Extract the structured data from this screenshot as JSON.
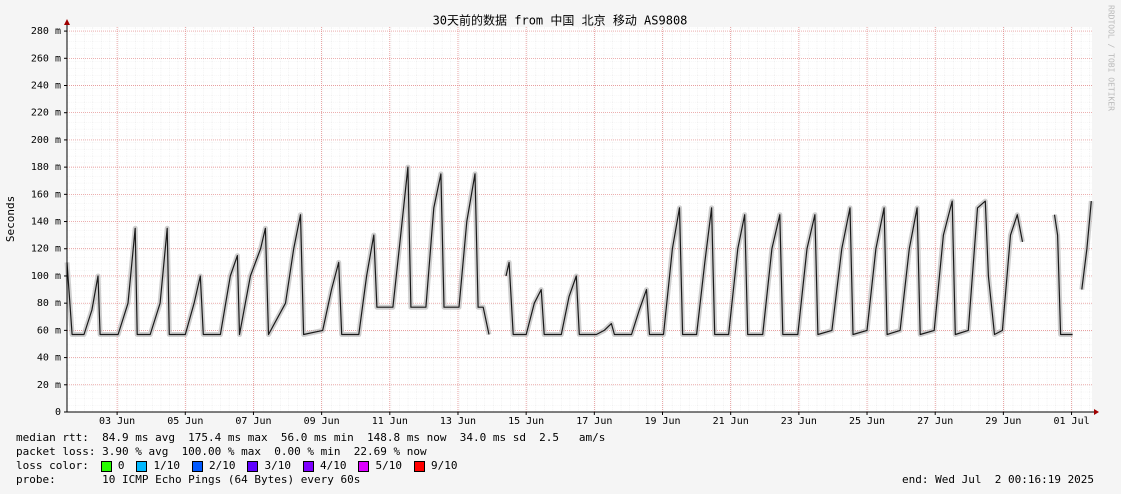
{
  "chart_data": {
    "type": "line",
    "title": "30天前的数据 from 中国 北京 移动 AS9808",
    "y_label": "Seconds",
    "watermark": "RRDTOOL / TOBI OETIKER",
    "x": [
      1.53,
      1.68,
      2.03,
      2.26,
      2.44,
      2.5,
      3.03,
      3.32,
      3.53,
      3.59,
      3.97,
      4.26,
      4.47,
      4.53,
      5.0,
      5.26,
      5.44,
      5.53,
      6.03,
      6.32,
      6.53,
      6.59,
      6.91,
      7.21,
      7.35,
      7.44,
      7.94,
      8.18,
      8.38,
      8.47,
      9.03,
      9.29,
      9.5,
      9.59,
      10.09,
      10.32,
      10.53,
      10.62,
      11.09,
      11.32,
      11.53,
      11.62,
      12.06,
      12.29,
      12.5,
      12.59,
      13.03,
      13.26,
      13.5,
      13.59,
      13.74,
      13.91,
      14.2,
      14.41,
      14.5,
      14.62,
      15.0,
      15.24,
      15.44,
      15.53,
      16.03,
      16.26,
      16.47,
      16.56,
      17.06,
      17.29,
      17.5,
      17.59,
      18.09,
      18.32,
      18.53,
      18.62,
      19.03,
      19.29,
      19.5,
      19.59,
      20.0,
      20.24,
      20.44,
      20.53,
      20.94,
      21.21,
      21.41,
      21.5,
      21.94,
      22.21,
      22.44,
      22.53,
      22.97,
      23.24,
      23.47,
      23.56,
      23.97,
      24.26,
      24.5,
      24.59,
      25.0,
      25.26,
      25.5,
      25.59,
      25.97,
      26.24,
      26.47,
      26.56,
      26.97,
      27.24,
      27.5,
      27.59,
      27.97,
      28.24,
      28.47,
      28.56,
      28.74,
      28.97,
      29.21,
      29.41,
      29.56,
      29.9,
      30.5,
      30.59,
      30.68,
      31.03,
      31.15,
      31.3,
      31.45,
      31.58
    ],
    "series": [
      {
        "color": "#1a1a1a",
        "values": [
          110,
          57,
          57,
          75,
          100,
          57,
          57,
          80,
          135,
          57,
          57,
          80,
          135,
          57,
          57,
          80,
          100,
          57,
          57,
          100,
          115,
          57,
          100,
          120,
          135,
          57,
          80,
          120,
          145,
          57,
          60,
          90,
          110,
          57,
          57,
          100,
          130,
          77,
          77,
          130,
          180,
          77,
          77,
          150,
          175,
          77,
          77,
          140,
          175,
          77,
          77,
          57,
          null,
          100,
          110,
          57,
          57,
          80,
          90,
          57,
          57,
          85,
          100,
          57,
          57,
          60,
          65,
          57,
          57,
          75,
          90,
          57,
          57,
          120,
          150,
          57,
          57,
          110,
          150,
          57,
          57,
          120,
          145,
          57,
          57,
          120,
          145,
          57,
          57,
          120,
          145,
          57,
          60,
          120,
          150,
          57,
          60,
          120,
          150,
          57,
          60,
          120,
          150,
          57,
          60,
          130,
          155,
          57,
          60,
          150,
          155,
          100,
          57,
          60,
          130,
          145,
          125,
          null,
          145,
          130,
          57,
          57,
          null,
          90,
          120,
          155
        ]
      }
    ],
    "xlim": [
      1.53,
      31.6
    ],
    "xticks": [
      {
        "value": 3,
        "label": "03 Jun"
      },
      {
        "value": 5,
        "label": "05 Jun"
      },
      {
        "value": 7,
        "label": "07 Jun"
      },
      {
        "value": 9,
        "label": "09 Jun"
      },
      {
        "value": 11,
        "label": "11 Jun"
      },
      {
        "value": 13,
        "label": "13 Jun"
      },
      {
        "value": 15,
        "label": "15 Jun"
      },
      {
        "value": 17,
        "label": "17 Jun"
      },
      {
        "value": 19,
        "label": "19 Jun"
      },
      {
        "value": 21,
        "label": "21 Jun"
      },
      {
        "value": 23,
        "label": "23 Jun"
      },
      {
        "value": 25,
        "label": "25 Jun"
      },
      {
        "value": 27,
        "label": "27 Jun"
      },
      {
        "value": 29,
        "label": "29 Jun"
      },
      {
        "value": 31,
        "label": "01 Jul"
      }
    ],
    "ylim": [
      0,
      283
    ],
    "yticks": [
      0,
      {
        "value": 20,
        "label": "20 m"
      },
      {
        "value": 40,
        "label": "40 m"
      },
      {
        "value": 60,
        "label": "60 m"
      },
      {
        "value": 80,
        "label": "80 m"
      },
      {
        "value": 100,
        "label": "100 m"
      },
      {
        "value": 120,
        "label": "120 m"
      },
      {
        "value": 140,
        "label": "140 m"
      },
      {
        "value": 160,
        "label": "160 m"
      },
      {
        "value": 180,
        "label": "180 m"
      },
      {
        "value": 200,
        "label": "200 m"
      },
      {
        "value": 220,
        "label": "220 m"
      },
      {
        "value": 240,
        "label": "240 m"
      },
      {
        "value": 260,
        "label": "260 m"
      },
      {
        "value": 280,
        "label": "280 m"
      }
    ],
    "grid": true
  },
  "legend": {
    "median_rtt": "median rtt:  84.9 ms avg  175.4 ms max  56.0 ms min  148.8 ms now  34.0 ms sd  2.5   am/s",
    "packet_loss": "packet loss: 3.90 % avg  100.00 % max  0.00 % min  22.69 % now",
    "loss_color_label": "loss color:",
    "loss_colors": [
      {
        "label": "0",
        "color": "#26ff00"
      },
      {
        "label": "1/10",
        "color": "#00b8ff"
      },
      {
        "label": "2/10",
        "color": "#0059ff"
      },
      {
        "label": "3/10",
        "color": "#5e00ff"
      },
      {
        "label": "4/10",
        "color": "#7e00ff"
      },
      {
        "label": "5/10",
        "color": "#dd00ff"
      },
      {
        "label": "9/10",
        "color": "#ff0000"
      }
    ],
    "probe": "probe:       10 ICMP Echo Pings (64 Bytes) every 60s",
    "end": "end: Wed Jul  2 00:16:19 2025"
  }
}
